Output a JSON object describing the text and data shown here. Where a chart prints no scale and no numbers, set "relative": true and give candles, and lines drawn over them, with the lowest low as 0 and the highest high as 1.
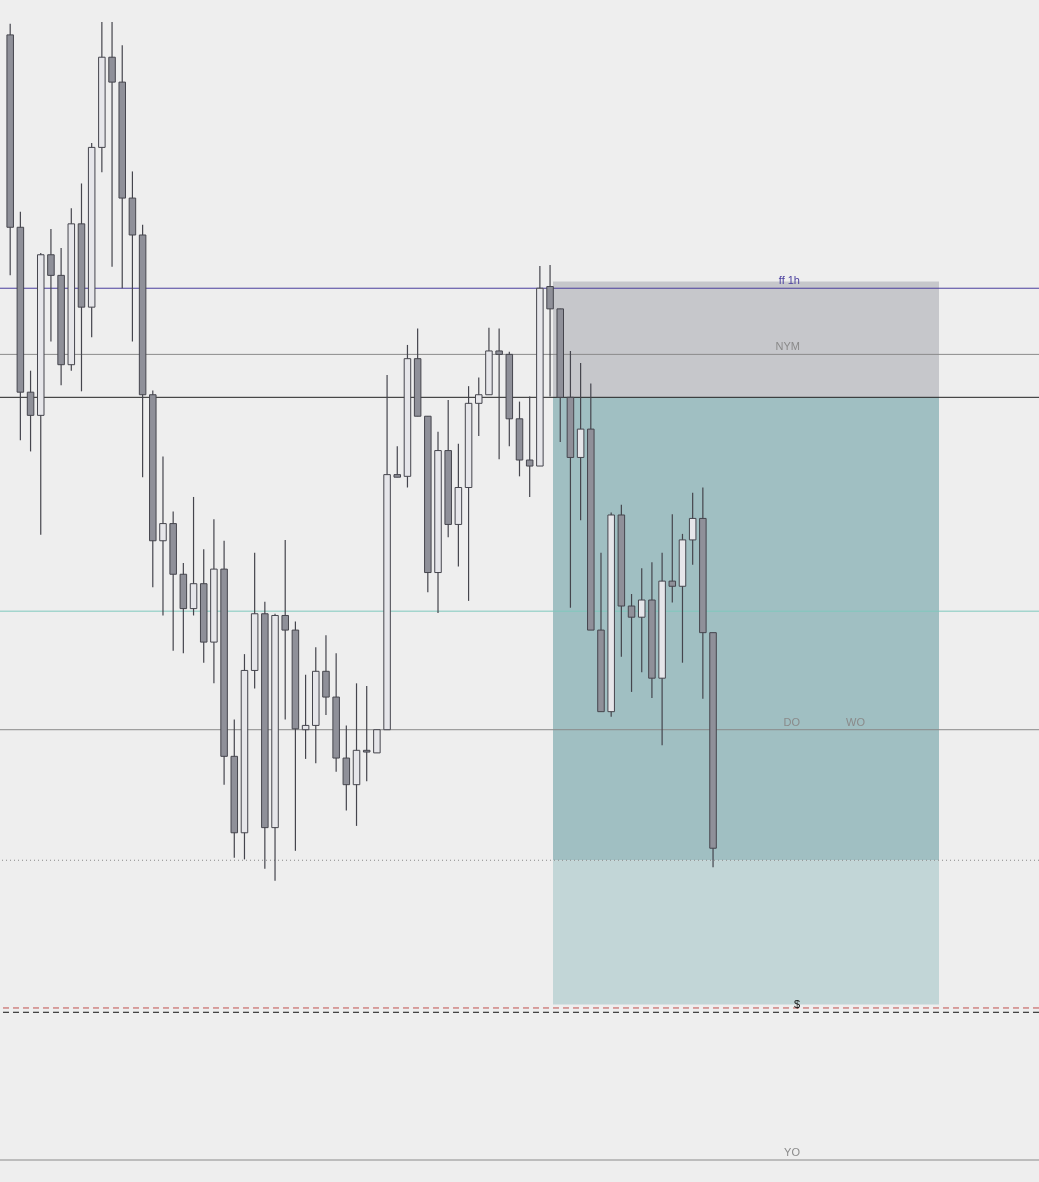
{
  "chart_data": {
    "type": "candlestick",
    "relative": true,
    "categories": [
      null,
      null,
      null,
      null,
      null,
      null,
      null,
      null,
      null,
      null,
      null,
      null,
      null,
      null,
      null,
      null,
      null,
      null,
      null,
      null,
      null,
      null,
      null,
      null,
      null,
      null,
      null,
      null,
      null,
      null,
      null,
      null,
      null,
      null,
      null,
      null,
      null,
      null,
      null,
      null,
      null,
      null,
      null,
      null,
      null,
      null,
      null,
      null,
      null,
      null,
      null,
      null,
      null,
      null,
      null,
      null,
      null,
      null,
      null,
      null,
      null,
      null,
      null,
      null,
      null,
      null,
      null,
      null,
      null,
      null
    ],
    "ohlc": [
      [
        0.985,
        0.998,
        0.705,
        0.761
      ],
      [
        0.761,
        0.779,
        0.513,
        0.569
      ],
      [
        0.569,
        0.594,
        0.5,
        0.542
      ],
      [
        0.542,
        0.731,
        0.403,
        0.729
      ],
      [
        0.729,
        0.759,
        0.628,
        0.705
      ],
      [
        0.705,
        0.737,
        0.577,
        0.601
      ],
      [
        0.601,
        0.783,
        0.594,
        0.765
      ],
      [
        0.765,
        0.812,
        0.57,
        0.668
      ],
      [
        0.668,
        0.859,
        0.633,
        0.854
      ],
      [
        0.854,
        1.0,
        0.825,
        0.959
      ],
      [
        0.959,
        1.0,
        0.715,
        0.93
      ],
      [
        0.93,
        0.973,
        0.69,
        0.795
      ],
      [
        0.795,
        0.826,
        0.628,
        0.752
      ],
      [
        0.752,
        0.764,
        0.47,
        0.566
      ],
      [
        0.566,
        0.571,
        0.342,
        0.396
      ],
      [
        0.396,
        0.494,
        0.309,
        0.416
      ],
      [
        0.416,
        0.43,
        0.268,
        0.357
      ],
      [
        0.357,
        0.37,
        0.265,
        0.317
      ],
      [
        0.317,
        0.447,
        0.309,
        0.346
      ],
      [
        0.346,
        0.386,
        0.254,
        0.278
      ],
      [
        0.278,
        0.421,
        0.23,
        0.363
      ],
      [
        0.363,
        0.396,
        0.112,
        0.145
      ],
      [
        0.145,
        0.188,
        0.027,
        0.056
      ],
      [
        0.056,
        0.264,
        0.025,
        0.245
      ],
      [
        0.245,
        0.382,
        0.224,
        0.311
      ],
      [
        0.311,
        0.325,
        0.014,
        0.062
      ],
      [
        0.062,
        0.311,
        0.0,
        0.309
      ],
      [
        0.309,
        0.397,
        0.188,
        0.292
      ],
      [
        0.292,
        0.302,
        0.035,
        0.177
      ],
      [
        0.176,
        0.24,
        0.142,
        0.181
      ],
      [
        0.181,
        0.272,
        0.137,
        0.244
      ],
      [
        0.244,
        0.286,
        0.193,
        0.214
      ],
      [
        0.214,
        0.265,
        0.127,
        0.143
      ],
      [
        0.143,
        0.181,
        0.082,
        0.112
      ],
      [
        0.112,
        0.23,
        0.064,
        0.152
      ],
      [
        0.152,
        0.227,
        0.116,
        0.15
      ],
      [
        0.149,
        0.176,
        0.149,
        0.176
      ],
      [
        0.176,
        0.589,
        0.176,
        0.473
      ],
      [
        0.473,
        0.506,
        0.47,
        0.47
      ],
      [
        0.471,
        0.624,
        0.458,
        0.608
      ],
      [
        0.608,
        0.643,
        0.541,
        0.541
      ],
      [
        0.541,
        0.541,
        0.336,
        0.359
      ],
      [
        0.359,
        0.523,
        0.312,
        0.501
      ],
      [
        0.501,
        0.56,
        0.4,
        0.415
      ],
      [
        0.415,
        0.509,
        0.366,
        0.458
      ],
      [
        0.458,
        0.576,
        0.326,
        0.556
      ],
      [
        0.556,
        0.586,
        0.518,
        0.566
      ],
      [
        0.566,
        0.644,
        0.566,
        0.617
      ],
      [
        0.617,
        0.643,
        0.491,
        0.613
      ],
      [
        0.613,
        0.616,
        0.506,
        0.538
      ],
      [
        0.538,
        0.558,
        0.471,
        0.49
      ],
      [
        0.49,
        0.564,
        0.447,
        0.483
      ],
      [
        0.483,
        0.716,
        0.483,
        0.69
      ],
      [
        0.692,
        0.717,
        0.564,
        0.666
      ],
      [
        0.666,
        0.666,
        0.511,
        0.563
      ],
      [
        0.563,
        0.617,
        0.318,
        0.493
      ],
      [
        0.493,
        0.603,
        0.42,
        0.526
      ],
      [
        0.526,
        0.579,
        0.292,
        0.292
      ],
      [
        0.292,
        0.382,
        0.197,
        0.197
      ],
      [
        0.197,
        0.429,
        0.191,
        0.426
      ],
      [
        0.426,
        0.438,
        0.261,
        0.32
      ],
      [
        0.32,
        0.334,
        0.22,
        0.307
      ],
      [
        0.307,
        0.364,
        0.243,
        0.327
      ],
      [
        0.327,
        0.371,
        0.213,
        0.236
      ],
      [
        0.236,
        0.382,
        0.158,
        0.349
      ],
      [
        0.349,
        0.427,
        0.324,
        0.343
      ],
      [
        0.343,
        0.404,
        0.254,
        0.397
      ],
      [
        0.397,
        0.452,
        0.368,
        0.422
      ],
      [
        0.422,
        0.458,
        0.212,
        0.289
      ],
      [
        0.289,
        0.289,
        0.016,
        0.038
      ]
    ],
    "bands": [
      {
        "axis": "y",
        "from": 0.563,
        "to": 0.698,
        "color": "#c6c7cb"
      },
      {
        "axis": "y",
        "from": 0.024,
        "to": 0.563,
        "color": "#a0bfc2"
      },
      {
        "axis": "y",
        "from": -0.144,
        "to": 0.024,
        "color": "#c2d6d7"
      }
    ],
    "ref_lines": [
      {
        "axis": "y",
        "value": 0.69,
        "label": "ff 1h",
        "color": "#4b3f9e"
      },
      {
        "axis": "y",
        "value": 0.613,
        "label": "NYM",
        "color": "#8a8a8a"
      },
      {
        "axis": "y",
        "value": 0.563,
        "color": "#222222"
      },
      {
        "axis": "y",
        "value": 0.314,
        "color": "#7fc8bd"
      },
      {
        "axis": "y",
        "value": 0.176,
        "label": "DO",
        "color": "#8a8a8a"
      },
      {
        "axis": "y",
        "value": 0.024,
        "color": "#888888",
        "line_style": "dotted"
      },
      {
        "axis": "y",
        "value": -0.148,
        "color": "#c0504d",
        "line_style": "dashed"
      },
      {
        "axis": "y",
        "value": -0.153,
        "label": "$",
        "color": "#111111",
        "line_style": "dashed"
      },
      {
        "axis": "y",
        "value": -0.325,
        "label": "YO",
        "color": "#8a8a8a"
      }
    ],
    "annotations": [
      {
        "text": "WO",
        "y": 0.176
      }
    ]
  }
}
